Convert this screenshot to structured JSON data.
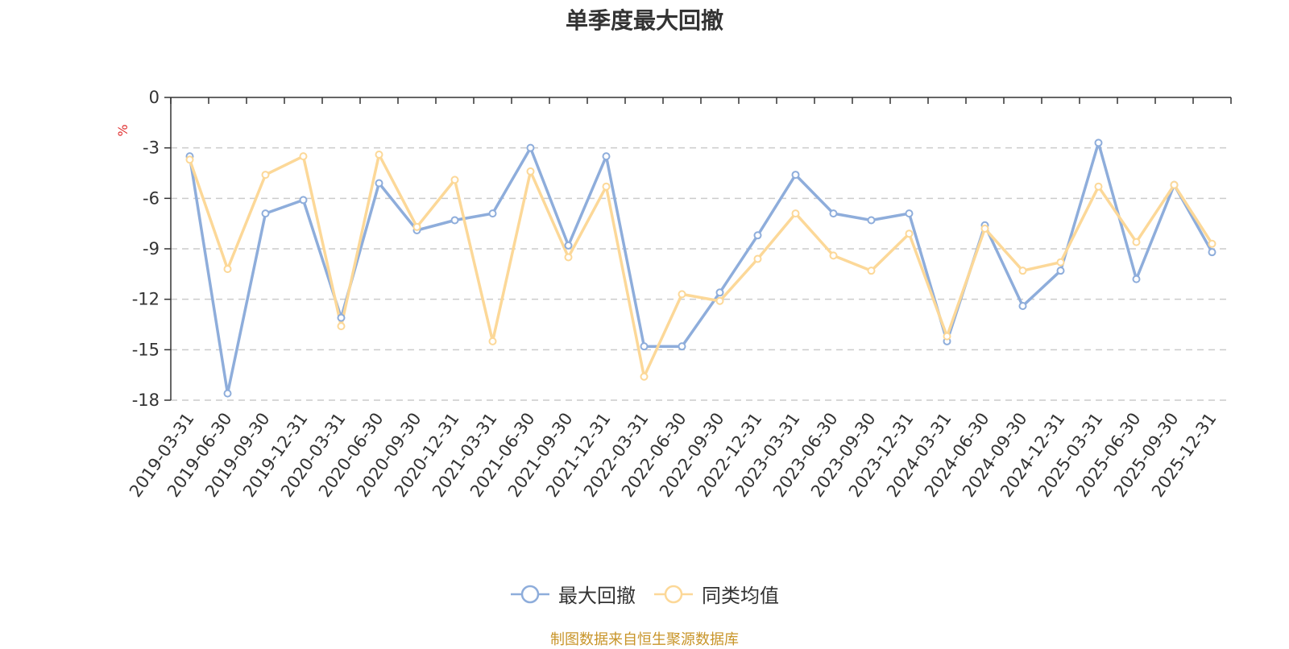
{
  "chart_data": {
    "type": "line",
    "title": "单季度最大回撤",
    "ylabel": "%",
    "xlabel": "",
    "ylim": [
      -18,
      0
    ],
    "yticks": [
      0,
      -3,
      -6,
      -9,
      -12,
      -15,
      -18
    ],
    "grid": true,
    "legend_position": "bottom",
    "categories": [
      "2019-03-31",
      "2019-06-30",
      "2019-09-30",
      "2019-12-31",
      "2020-03-31",
      "2020-06-30",
      "2020-09-30",
      "2020-12-31",
      "2021-03-31",
      "2021-06-30",
      "2021-09-30",
      "2021-12-31",
      "2022-03-31",
      "2022-06-30",
      "2022-09-30",
      "2022-12-31",
      "2023-03-31",
      "2023-06-30",
      "2023-09-30",
      "2023-12-31",
      "2024-03-31",
      "2024-06-30",
      "2024-09-30",
      "2024-12-31",
      "2025-03-31",
      "2025-06-30",
      "2025-09-30",
      "2025-12-31"
    ],
    "series": [
      {
        "name": "最大回撤",
        "color": "#8eaddb",
        "values": [
          -3.5,
          -17.6,
          -6.9,
          -6.1,
          -13.1,
          -5.1,
          -7.9,
          -7.3,
          -6.9,
          -3.0,
          -8.8,
          -3.5,
          -14.8,
          -14.8,
          -11.6,
          -8.2,
          -4.6,
          -6.9,
          -7.3,
          -6.9,
          -14.5,
          -7.6,
          -12.4,
          -10.3,
          -2.7,
          -10.8,
          -5.2,
          -9.2
        ]
      },
      {
        "name": "同类均值",
        "color": "#fcd898",
        "values": [
          -3.7,
          -10.2,
          -4.6,
          -3.5,
          -13.6,
          -3.4,
          -7.7,
          -4.9,
          -14.5,
          -4.4,
          -9.5,
          -5.3,
          -16.6,
          -11.7,
          -12.1,
          -9.6,
          -6.9,
          -9.4,
          -10.3,
          -8.1,
          -14.2,
          -7.8,
          -10.3,
          -9.8,
          -5.3,
          -8.6,
          -5.2,
          -8.7
        ]
      }
    ]
  },
  "source_note": "制图数据来自恒生聚源数据库"
}
